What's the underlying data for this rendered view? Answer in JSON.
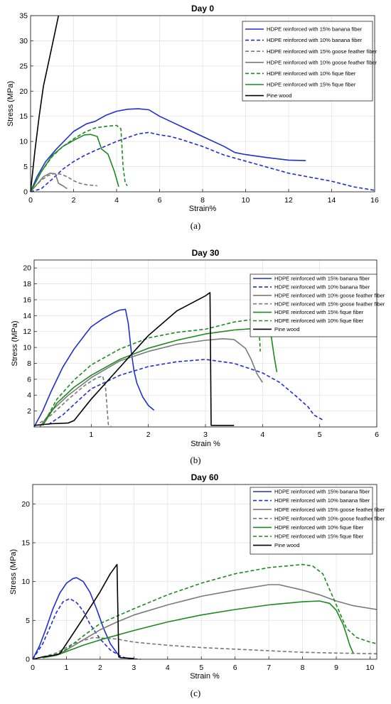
{
  "chart_data": [
    {
      "type": "line",
      "title": "Day 0",
      "xlabel": "Strain%",
      "ylabel": "Stress (MPa)",
      "caption": "(a)",
      "xlim": [
        0,
        16
      ],
      "ylim": [
        0,
        35
      ],
      "xticks": [
        "0",
        "2",
        "4",
        "6",
        "8",
        "10",
        "12",
        "14",
        "16"
      ],
      "yticks": [
        "0",
        "5",
        "10",
        "15",
        "20",
        "25",
        "30",
        "35"
      ],
      "grid": true,
      "legend_position": "top-right",
      "series": [
        {
          "name": "HDPE reinforced with 15% banana fiber",
          "color": "#1f2fd6",
          "dash": "solid",
          "x": [
            0,
            0.3,
            0.7,
            1.2,
            2,
            2.6,
            3,
            3.5,
            4,
            4.5,
            5,
            5.5,
            6,
            7,
            8,
            9,
            9.5,
            10,
            11,
            12,
            12.8
          ],
          "y": [
            0,
            3,
            6,
            8.5,
            12,
            13.5,
            14,
            15.2,
            16,
            16.4,
            16.5,
            16.3,
            15,
            13,
            11,
            9,
            7.8,
            7.4,
            6.8,
            6.3,
            6.2
          ]
        },
        {
          "name": "HDPE reinforced with 10% banana fiber",
          "color": "#1f2fd6",
          "dash": "dashed",
          "x": [
            0,
            0.5,
            1,
            1.5,
            2,
            2.5,
            3,
            4,
            5,
            5.5,
            6,
            6.5,
            7,
            8,
            9,
            10,
            11,
            12,
            13,
            14,
            15,
            16
          ],
          "y": [
            0,
            0.6,
            2.5,
            4.5,
            6,
            7.2,
            8.2,
            10,
            11.5,
            11.8,
            11.3,
            11,
            10.4,
            9,
            7.3,
            6.1,
            4.9,
            3.7,
            2.9,
            2.1,
            1,
            0.3
          ]
        },
        {
          "name": "HDPE reinforced with 15% goose feather fiber",
          "color": "#7a7a7a",
          "dash": "dashed",
          "x": [
            0,
            0.2,
            0.5,
            0.8,
            1.1,
            1.4,
            1.7,
            2,
            2.3,
            2.6,
            3.1
          ],
          "y": [
            0,
            1,
            2.3,
            3.2,
            3.6,
            3.5,
            3,
            2.2,
            1.7,
            1.4,
            1.2
          ]
        },
        {
          "name": "HDPE reinforced with 10% goose feather fiber",
          "color": "#7a7a7a",
          "dash": "solid",
          "x": [
            0,
            0.3,
            0.6,
            0.9,
            1.15,
            1.3,
            1.5,
            1.7
          ],
          "y": [
            0,
            1.5,
            3,
            3.7,
            3.6,
            1.7,
            1.2,
            0.6
          ]
        },
        {
          "name": "HDPE reinforced with 10% fique fiber",
          "color": "#1c8a1c",
          "dash": "dashed",
          "x": [
            0,
            0.5,
            1,
            1.5,
            2,
            2.5,
            3,
            3.5,
            4,
            4.2,
            4.3,
            4.4,
            4.5
          ],
          "y": [
            0,
            4,
            7,
            9,
            10.5,
            11.8,
            12.7,
            13,
            13.2,
            12.5,
            5,
            1.8,
            1.2
          ]
        },
        {
          "name": "HDPE reinforced with 15% fique fiber",
          "color": "#1c8a1c",
          "dash": "solid",
          "x": [
            0,
            0.5,
            1,
            1.5,
            2,
            2.5,
            2.8,
            3.1,
            3.3,
            3.6,
            3.9,
            4.1
          ],
          "y": [
            0,
            4,
            7.2,
            9,
            10.2,
            11.3,
            11.4,
            11,
            8.5,
            7.5,
            4,
            1
          ]
        },
        {
          "name": "Pine wood",
          "color": "#000000",
          "dash": "solid",
          "x": [
            0,
            0.2,
            0.4,
            0.6,
            0.8,
            1,
            1.2,
            1.3
          ],
          "y": [
            0,
            8,
            15,
            21,
            25,
            29,
            33,
            35
          ]
        }
      ]
    },
    {
      "type": "line",
      "title": "Day 30",
      "xlabel": "Strain %",
      "ylabel": "Stress (MPa)",
      "caption": "(b)",
      "xlim": [
        0,
        6
      ],
      "ylim": [
        0,
        21
      ],
      "xticks": [
        "1",
        "2",
        "3",
        "4",
        "5",
        "6"
      ],
      "yticks": [
        "2",
        "4",
        "6",
        "8",
        "10",
        "12",
        "14",
        "16",
        "18",
        "20"
      ],
      "grid": true,
      "legend_position": "top-right",
      "series": [
        {
          "name": "HDPE reinforced with 15% banana fiber",
          "color": "#1f2fd6",
          "dash": "solid",
          "x": [
            0,
            0.15,
            0.3,
            0.5,
            0.7,
            0.9,
            1,
            1.2,
            1.4,
            1.5,
            1.6,
            1.65,
            1.7,
            1.75,
            1.8,
            1.9,
            2,
            2.1
          ],
          "y": [
            0,
            2,
            4.5,
            7.5,
            9.8,
            11.7,
            12.6,
            13.6,
            14.4,
            14.7,
            14.8,
            13,
            9.5,
            7,
            5.5,
            3.8,
            2.7,
            2.1
          ]
        },
        {
          "name": "HDPE reinforced with 10% banana fiber",
          "color": "#1f2fd6",
          "dash": "dashed",
          "x": [
            0.25,
            0.5,
            0.8,
            1,
            1.5,
            2,
            2.5,
            3,
            3.5,
            4,
            4.3,
            4.6,
            4.8,
            4.9,
            5.05
          ],
          "y": [
            0.3,
            1.5,
            3.5,
            4.8,
            6.5,
            7.6,
            8.2,
            8.5,
            8,
            6.8,
            5.6,
            3.8,
            2.5,
            1.5,
            0.9
          ]
        },
        {
          "name": "HDPE reinforced with 10% goose feather fiber",
          "color": "#7a7a7a",
          "dash": "solid",
          "x": [
            0.1,
            0.3,
            0.6,
            1,
            1.5,
            2,
            2.5,
            3,
            3.3,
            3.5,
            3.7,
            3.8,
            3.9,
            4
          ],
          "y": [
            0,
            2,
            4,
            6.2,
            8.3,
            9.5,
            10.4,
            10.9,
            11.1,
            11,
            9.9,
            8.5,
            6.7,
            5.6
          ]
        },
        {
          "name": "HDPE reinforced with 15% goose feather fiber",
          "color": "#7a7a7a",
          "dash": "dashed",
          "x": [
            0.1,
            0.3,
            0.6,
            0.9,
            1.1,
            1.2,
            1.25,
            1.3,
            1.35
          ],
          "y": [
            0.5,
            1.5,
            3.5,
            5.3,
            6.2,
            6.4,
            5,
            0.3,
            0.1
          ]
        },
        {
          "name": "HDPE reinforced with 15% fique fiber",
          "color": "#1c8a1c",
          "dash": "solid",
          "x": [
            0.15,
            0.4,
            0.7,
            1,
            1.5,
            2,
            2.5,
            3,
            3.5,
            3.9,
            4.1,
            4.15,
            4.2,
            4.25
          ],
          "y": [
            0.2,
            3,
            5,
            6.5,
            8.5,
            9.9,
            10.9,
            11.7,
            12.2,
            12.4,
            12.3,
            11.5,
            9,
            6.9
          ]
        },
        {
          "name": "HDPE reinforced with 10% fique fiber",
          "color": "#1c8a1c",
          "dash": "dashed",
          "x": [
            0.15,
            0.4,
            0.7,
            1,
            1.5,
            2,
            2.5,
            3,
            3.5,
            3.8,
            3.9,
            3.95,
            3.96
          ],
          "y": [
            0.2,
            3.5,
            5.9,
            7.8,
            9.8,
            11.2,
            11.9,
            12.3,
            13.2,
            13.5,
            13,
            11,
            9.5
          ]
        },
        {
          "name": "Pine wood",
          "color": "#000000",
          "dash": "solid",
          "x": [
            0,
            0.3,
            0.6,
            0.7,
            1,
            1.5,
            2,
            2.5,
            3,
            3.08,
            3.1,
            3.2,
            3.5
          ],
          "y": [
            0.2,
            0.4,
            0.5,
            0.8,
            3.5,
            7.5,
            11.5,
            14.6,
            16.5,
            16.9,
            0.2,
            0.2,
            0.2
          ]
        }
      ]
    },
    {
      "type": "line",
      "title": "Day 60",
      "xlabel": "Strain %",
      "ylabel": "Stress (MPa)",
      "caption": "(c)",
      "xlim": [
        0,
        10.2
      ],
      "ylim": [
        0,
        22.5
      ],
      "xticks": [
        "0",
        "1",
        "2",
        "3",
        "4",
        "5",
        "6",
        "7",
        "8",
        "9",
        "10"
      ],
      "yticks": [
        "0",
        "5",
        "10",
        "15",
        "20"
      ],
      "grid": true,
      "legend_position": "top-center",
      "series": [
        {
          "name": "HDPE reinforced with 15% banana fiber",
          "color": "#1f2fd6",
          "dash": "solid",
          "x": [
            0,
            0.2,
            0.4,
            0.6,
            0.8,
            1,
            1.2,
            1.3,
            1.5,
            1.7,
            1.9,
            2.1,
            2.3,
            2.5,
            2.6
          ],
          "y": [
            0,
            1.7,
            4,
            6.5,
            8.5,
            9.8,
            10.4,
            10.5,
            10,
            8.6,
            6.4,
            4,
            2,
            0.8,
            0.3
          ]
        },
        {
          "name": "HDPE reinforced with 10% banana fiber",
          "color": "#1f2fd6",
          "dash": "dashed",
          "x": [
            0,
            0.3,
            0.5,
            0.7,
            0.9,
            1.1,
            1.3,
            1.5,
            1.7,
            2,
            2.3,
            2.6,
            2.8,
            3.2
          ],
          "y": [
            0,
            2,
            4,
            6,
            7.4,
            7.8,
            7.3,
            6.2,
            4.5,
            2.6,
            1.2,
            0.4,
            0.1,
            0
          ]
        },
        {
          "name": "HDPE reinforced with 15% goose feather fiber",
          "color": "#7a7a7a",
          "dash": "solid",
          "x": [
            0.3,
            0.7,
            1,
            1.5,
            2,
            2.5,
            3,
            4,
            5,
            6,
            7,
            7.3,
            8,
            8.5,
            9,
            9.5,
            10.2
          ],
          "y": [
            0.2,
            0.5,
            1.2,
            2.5,
            3.8,
            4.8,
            5.7,
            7,
            8.1,
            8.9,
            9.6,
            9.6,
            8.9,
            8.3,
            7.5,
            6.9,
            6.4
          ]
        },
        {
          "name": "HDPE reinforced with 10% goose feather fiber",
          "color": "#7a7a7a",
          "dash": "dashed",
          "x": [
            0.3,
            0.7,
            1.2,
            1.8,
            2.5,
            3,
            4,
            5,
            6,
            7,
            8,
            9,
            10.2
          ],
          "y": [
            0.3,
            0.8,
            2,
            2.8,
            2.6,
            2.2,
            1.8,
            1.5,
            1.3,
            1.1,
            0.9,
            0.8,
            0.7
          ]
        },
        {
          "name": "HDPE reinforced with 10% fique fiber",
          "color": "#1c8a1c",
          "dash": "solid",
          "x": [
            0.3,
            0.7,
            1,
            1.5,
            2,
            3,
            4,
            5,
            6,
            7,
            8,
            8.5,
            8.8,
            9,
            9.2,
            9.3,
            9.4,
            9.5
          ],
          "y": [
            0.2,
            0.5,
            1,
            1.8,
            2.5,
            3.7,
            4.8,
            5.7,
            6.4,
            7,
            7.4,
            7.5,
            7.2,
            6.3,
            4.5,
            3.2,
            1.8,
            0.8
          ]
        },
        {
          "name": "HDPE reinforced with 15% fique fiber",
          "color": "#1c8a1c",
          "dash": "dashed",
          "x": [
            0.3,
            0.7,
            1,
            1.5,
            2,
            3,
            4,
            5,
            6,
            7,
            7.5,
            8,
            8.3,
            8.6,
            8.9,
            9.1,
            9.3,
            9.6,
            10,
            10.2
          ],
          "y": [
            0.2,
            0.6,
            1.3,
            3,
            4.6,
            6.5,
            8.3,
            9.8,
            11,
            11.8,
            12,
            12.2,
            12,
            11,
            8,
            6,
            4,
            2.8,
            2.2,
            2
          ]
        },
        {
          "name": "Pine wood",
          "color": "#000000",
          "dash": "solid",
          "x": [
            0,
            0.3,
            0.6,
            0.8,
            1,
            1.5,
            2,
            2.3,
            2.5,
            2.55,
            2.6,
            3
          ],
          "y": [
            0,
            0.3,
            0.5,
            0.7,
            2,
            5.3,
            8.7,
            11,
            12.2,
            0.3,
            0.2,
            0.1
          ]
        }
      ]
    }
  ]
}
